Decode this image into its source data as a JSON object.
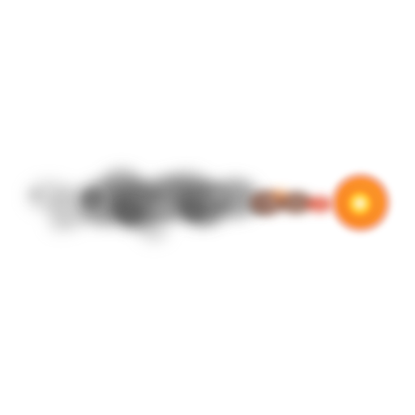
{
  "sprite": {
    "name": "fireball-with-smoke-trail",
    "colors": {
      "background": "#ffffff",
      "smoke_dark": "#5a5a5a",
      "smoke_mid": "#7d7d7d",
      "smoke_light": "#b4b4b4",
      "ember_brown": "#8a5a48",
      "flame_red": "#e0452a",
      "flame_orange": "#ff8a1e",
      "flame_yellow": "#ffd23a",
      "core_white": "#fffbe0"
    }
  }
}
